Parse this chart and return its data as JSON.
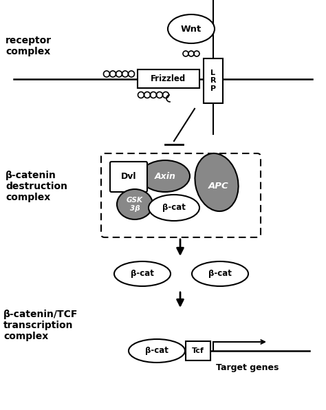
{
  "bg_color": "#ffffff",
  "gray_fill": "#888888",
  "label_receptor": "receptor\ncomplex",
  "label_destruction": "β-catenin\ndestruction\ncomplex",
  "label_transcription": "β-catenin/TCF\ntranscription\ncomplex",
  "label_wnt": "Wnt",
  "label_frizzled": "Frizzled",
  "label_lrp": "L\nR\nP",
  "label_dvl": "Dvl",
  "label_axin": "Axin",
  "label_gsk": "GSK\n3β",
  "label_apc": "APC",
  "label_bcat": "β-cat",
  "label_tcf": "Tcf",
  "label_target_genes": "Target genes",
  "fig_w": 4.74,
  "fig_h": 5.96,
  "dpi": 100
}
